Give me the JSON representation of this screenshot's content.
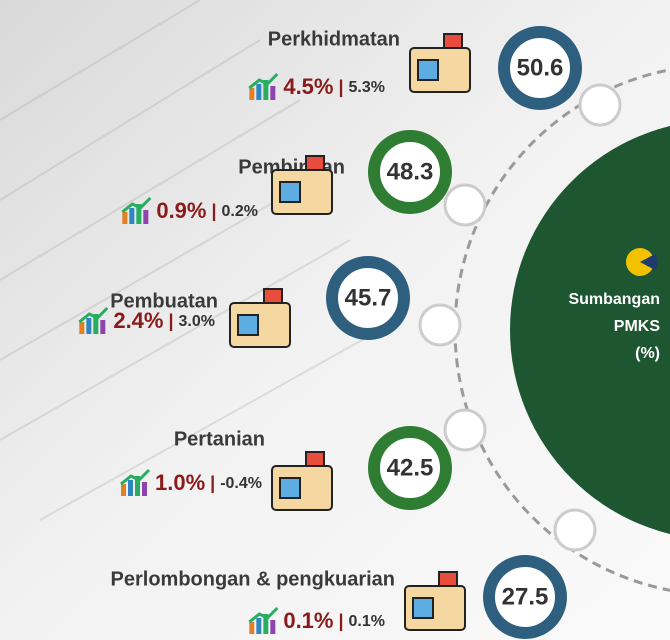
{
  "center": {
    "title_lines": [
      "Sumbangan",
      "PMKS",
      "(%)"
    ]
  },
  "items": [
    {
      "name": "Perkhidmatan",
      "value": "50.6",
      "growth": "4.5%",
      "separator": "|",
      "second": "5.3%"
    },
    {
      "name": "Pembinaan",
      "value": "48.3",
      "growth": "0.9%",
      "separator": "|",
      "second": "0.2%"
    },
    {
      "name": "Pembuatan",
      "value": "45.7",
      "growth": "2.4%",
      "separator": "|",
      "second": "3.0%"
    },
    {
      "name": "Pertanian",
      "value": "42.5",
      "growth": "1.0%",
      "separator": "|",
      "second": "-0.4%"
    },
    {
      "name": "Perlombongan & pengkuarian",
      "value": "27.5",
      "growth": "0.1%",
      "separator": "|",
      "second": "0.1%"
    }
  ]
}
